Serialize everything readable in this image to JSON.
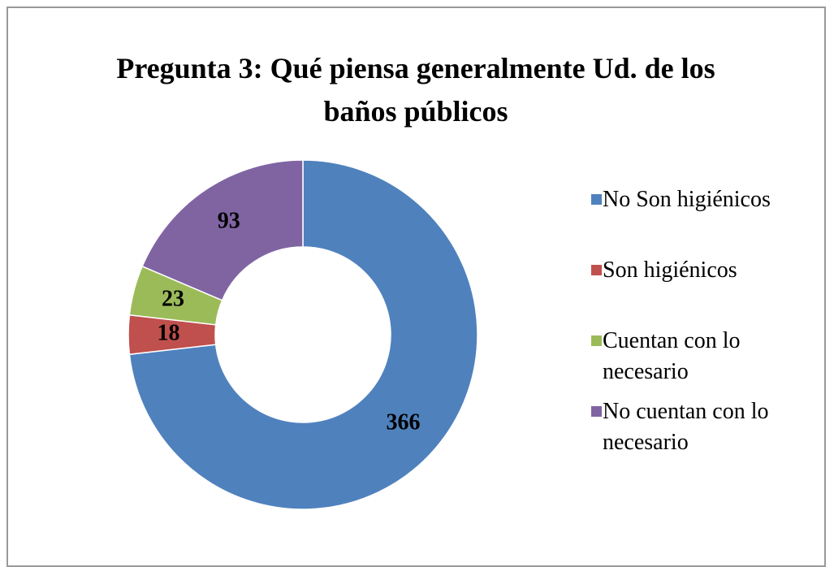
{
  "chart_data": {
    "type": "pie",
    "donut": true,
    "title": "Pregunta 3: Qué piensa generalmente Ud. de los baños públicos",
    "categories": [
      "No Son higiénicos",
      "Son higiénicos",
      "Cuentan con lo necesario",
      "No cuentan con lo necesario"
    ],
    "values": [
      366,
      18,
      23,
      93
    ],
    "colors": [
      "#4f81bd",
      "#c0504d",
      "#9bbb59",
      "#8064a2"
    ],
    "legend": "right"
  }
}
